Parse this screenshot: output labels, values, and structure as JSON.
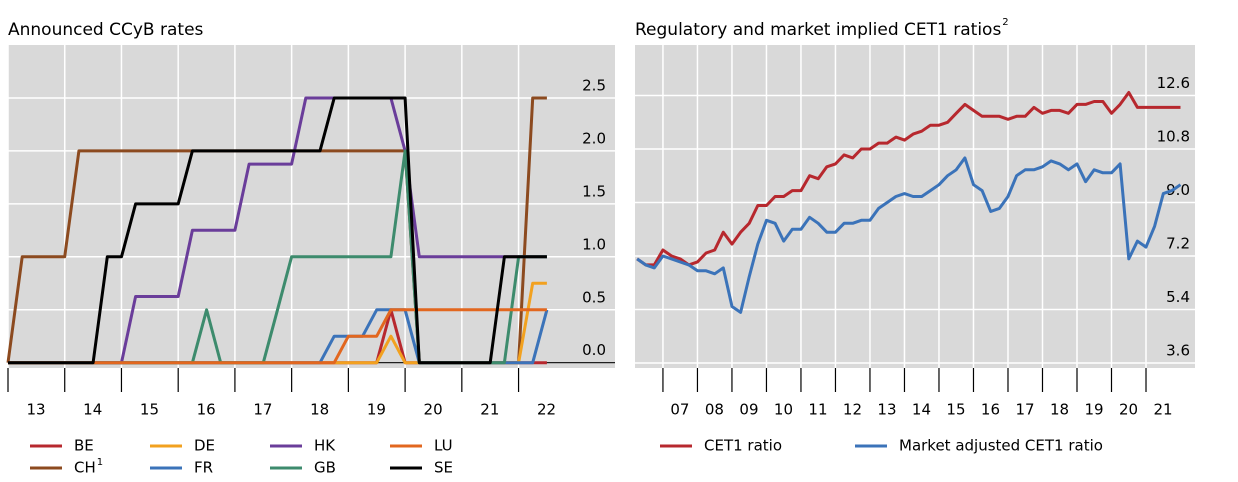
{
  "chart_data": [
    {
      "type": "line",
      "title": "Announced CCyB rates",
      "x": [
        2013,
        2013.25,
        2013.5,
        2013.75,
        2014,
        2014.25,
        2014.5,
        2014.75,
        2015,
        2015.25,
        2015.5,
        2015.75,
        2016,
        2016.25,
        2016.5,
        2016.75,
        2017,
        2017.25,
        2017.5,
        2017.75,
        2018,
        2018.25,
        2018.5,
        2018.75,
        2019,
        2019.25,
        2019.5,
        2019.75,
        2020,
        2020.25,
        2020.5,
        2020.75,
        2021,
        2021.25,
        2021.5,
        2021.75,
        2022,
        2022.25,
        2022.5
      ],
      "series": [
        {
          "name": "BE",
          "color": "#b7282e",
          "values": [
            0,
            0,
            0,
            0,
            0,
            0,
            0,
            0,
            0,
            0,
            0,
            0,
            0,
            0,
            0,
            0,
            0,
            0,
            0,
            0,
            0,
            0,
            0,
            0,
            0,
            0,
            0,
            0.5,
            0,
            0,
            0,
            0,
            0,
            0,
            0,
            0,
            0,
            0,
            0
          ]
        },
        {
          "name": "CH",
          "note": "1",
          "color": "#8c4a1f",
          "values": [
            0,
            1,
            1,
            1,
            1,
            2,
            2,
            2,
            2,
            2,
            2,
            2,
            2,
            2,
            2,
            2,
            2,
            2,
            2,
            2,
            2,
            2,
            2,
            2,
            2,
            2,
            2,
            2,
            2,
            0,
            0,
            0,
            0,
            0,
            0,
            0,
            0,
            2.5,
            2.5
          ]
        },
        {
          "name": "DE",
          "color": "#f2a11f",
          "values": [
            0,
            0,
            0,
            0,
            0,
            0,
            0,
            0,
            0,
            0,
            0,
            0,
            0,
            0,
            0,
            0,
            0,
            0,
            0,
            0,
            0,
            0,
            0,
            0,
            0,
            0,
            0,
            0.25,
            0,
            0,
            0,
            0,
            0,
            0,
            0,
            0,
            0,
            0.75,
            0.75
          ]
        },
        {
          "name": "FR",
          "color": "#3b73b9",
          "values": [
            0,
            0,
            0,
            0,
            0,
            0,
            0,
            0,
            0,
            0,
            0,
            0,
            0,
            0,
            0,
            0,
            0,
            0,
            0,
            0,
            0,
            0,
            0,
            0.25,
            0.25,
            0.25,
            0.5,
            0.5,
            0.5,
            0,
            0,
            0,
            0,
            0,
            0,
            0,
            0,
            0,
            0.5
          ]
        },
        {
          "name": "HK",
          "color": "#6a3d9a",
          "values": [
            0,
            0,
            0,
            0,
            0,
            0,
            0,
            0,
            0,
            0.625,
            0.625,
            0.625,
            0.625,
            1.25,
            1.25,
            1.25,
            1.25,
            1.875,
            1.875,
            1.875,
            1.875,
            2.5,
            2.5,
            2.5,
            2.5,
            2.5,
            2.5,
            2.5,
            2,
            1,
            1,
            1,
            1,
            1,
            1,
            1,
            1,
            1,
            1
          ]
        },
        {
          "name": "GB",
          "color": "#3d8b6d",
          "values": [
            0,
            0,
            0,
            0,
            0,
            0,
            0,
            0,
            0,
            0,
            0,
            0,
            0,
            0,
            0.5,
            0,
            0,
            0,
            0,
            0.5,
            1,
            1,
            1,
            1,
            1,
            1,
            1,
            1,
            2,
            0,
            0,
            0,
            0,
            0,
            0,
            0,
            1,
            1,
            1
          ]
        },
        {
          "name": "LU",
          "color": "#e2671f",
          "values": [
            0,
            0,
            0,
            0,
            0,
            0,
            0,
            0,
            0,
            0,
            0,
            0,
            0,
            0,
            0,
            0,
            0,
            0,
            0,
            0,
            0,
            0,
            0,
            0,
            0.25,
            0.25,
            0.25,
            0.5,
            0.5,
            0.5,
            0.5,
            0.5,
            0.5,
            0.5,
            0.5,
            0.5,
            0.5,
            0.5,
            0.5
          ]
        },
        {
          "name": "SE",
          "color": "#000000",
          "values": [
            0,
            0,
            0,
            0,
            0,
            0,
            0,
            1,
            1,
            1.5,
            1.5,
            1.5,
            1.5,
            2,
            2,
            2,
            2,
            2,
            2,
            2,
            2,
            2,
            2,
            2.5,
            2.5,
            2.5,
            2.5,
            2.5,
            2.5,
            0,
            0,
            0,
            0,
            0,
            0,
            1,
            1,
            1,
            1
          ]
        }
      ],
      "xlim": [
        2013,
        2023.7
      ],
      "ylim": [
        -0.05,
        3.0
      ],
      "xticks": [
        {
          "value": 2013,
          "label": "13"
        },
        {
          "value": 2014,
          "label": "14"
        },
        {
          "value": 2015,
          "label": "15"
        },
        {
          "value": 2016,
          "label": "16"
        },
        {
          "value": 2017,
          "label": "17"
        },
        {
          "value": 2018,
          "label": "18"
        },
        {
          "value": 2019,
          "label": "19"
        },
        {
          "value": 2020,
          "label": "20"
        },
        {
          "value": 2021,
          "label": "21"
        },
        {
          "value": 2022,
          "label": "22"
        }
      ],
      "yticks": [
        {
          "value": 0,
          "label": "0.0"
        },
        0.5,
        {
          "value": 1,
          "label": "1.0"
        },
        1.5,
        {
          "value": 2,
          "label": "2.0"
        },
        2.5
      ],
      "grid": true,
      "legend": "bottom"
    },
    {
      "type": "line",
      "title": "Regulatory and market implied CET1 ratios",
      "title_note": "2",
      "x": [
        2006.25,
        2006.5,
        2006.75,
        2007,
        2007.25,
        2007.5,
        2007.75,
        2008,
        2008.25,
        2008.5,
        2008.75,
        2009,
        2009.25,
        2009.5,
        2009.75,
        2010,
        2010.25,
        2010.5,
        2010.75,
        2011,
        2011.25,
        2011.5,
        2011.75,
        2012,
        2012.25,
        2012.5,
        2012.75,
        2013,
        2013.25,
        2013.5,
        2013.75,
        2014,
        2014.25,
        2014.5,
        2014.75,
        2015,
        2015.25,
        2015.5,
        2015.75,
        2016,
        2016.25,
        2016.5,
        2016.75,
        2017,
        2017.25,
        2017.5,
        2017.75,
        2018,
        2018.25,
        2018.5,
        2018.75,
        2019,
        2019.25,
        2019.5,
        2019.75,
        2020,
        2020.25,
        2020.5,
        2020.75,
        2021,
        2021.25,
        2021.5,
        2021.75,
        2022
      ],
      "series": [
        {
          "name": "CET1 ratio",
          "color": "#b7282e",
          "values": [
            7.1,
            6.9,
            6.9,
            7.4,
            7.2,
            7.1,
            6.9,
            7.0,
            7.3,
            7.4,
            8.0,
            7.6,
            8.0,
            8.3,
            8.9,
            8.9,
            9.2,
            9.2,
            9.4,
            9.4,
            9.9,
            9.8,
            10.2,
            10.3,
            10.6,
            10.5,
            10.8,
            10.8,
            11.0,
            11.0,
            11.2,
            11.1,
            11.3,
            11.4,
            11.6,
            11.6,
            11.7,
            12.0,
            12.3,
            12.1,
            11.9,
            11.9,
            11.9,
            11.8,
            11.9,
            11.9,
            12.2,
            12.0,
            12.1,
            12.1,
            12.0,
            12.3,
            12.3,
            12.4,
            12.4,
            12.0,
            12.3,
            12.7,
            12.2,
            12.2,
            12.2,
            12.2,
            12.2,
            12.2
          ]
        },
        {
          "name": "Market adjusted CET1 ratio",
          "color": "#3b73b9",
          "values": [
            7.1,
            6.9,
            6.8,
            7.2,
            7.1,
            7.0,
            6.9,
            6.7,
            6.7,
            6.6,
            6.8,
            5.5,
            5.3,
            6.5,
            7.6,
            8.4,
            8.3,
            7.7,
            8.1,
            8.1,
            8.5,
            8.3,
            8.0,
            8.0,
            8.3,
            8.3,
            8.4,
            8.4,
            8.8,
            9.0,
            9.2,
            9.3,
            9.2,
            9.2,
            9.4,
            9.6,
            9.9,
            10.1,
            10.5,
            9.6,
            9.4,
            8.7,
            8.8,
            9.2,
            9.9,
            10.1,
            10.1,
            10.2,
            10.4,
            10.3,
            10.1,
            10.3,
            9.7,
            10.1,
            10.0,
            10.0,
            10.3,
            7.1,
            7.7,
            7.5,
            8.2,
            9.3,
            9.4,
            9.6
          ]
        }
      ],
      "xlim": [
        2006.19,
        2022.42
      ],
      "ylim": [
        3.43,
        14.3
      ],
      "xticks": [
        {
          "value": 2007,
          "label": "07"
        },
        {
          "value": 2008,
          "label": "08"
        },
        {
          "value": 2009,
          "label": "09"
        },
        {
          "value": 2010,
          "label": "10"
        },
        {
          "value": 2011,
          "label": "11"
        },
        {
          "value": 2012,
          "label": "12"
        },
        {
          "value": 2013,
          "label": "13"
        },
        {
          "value": 2014,
          "label": "14"
        },
        {
          "value": 2015,
          "label": "15"
        },
        {
          "value": 2016,
          "label": "16"
        },
        {
          "value": 2017,
          "label": "17"
        },
        {
          "value": 2018,
          "label": "18"
        },
        {
          "value": 2019,
          "label": "19"
        },
        {
          "value": 2020,
          "label": "20"
        },
        {
          "value": 2021,
          "label": "21"
        }
      ],
      "yticks": [
        3.6,
        5.4,
        7.2,
        {
          "value": 9,
          "label": "9.0"
        },
        10.8,
        12.6
      ],
      "grid": true,
      "legend": "bottom"
    }
  ]
}
